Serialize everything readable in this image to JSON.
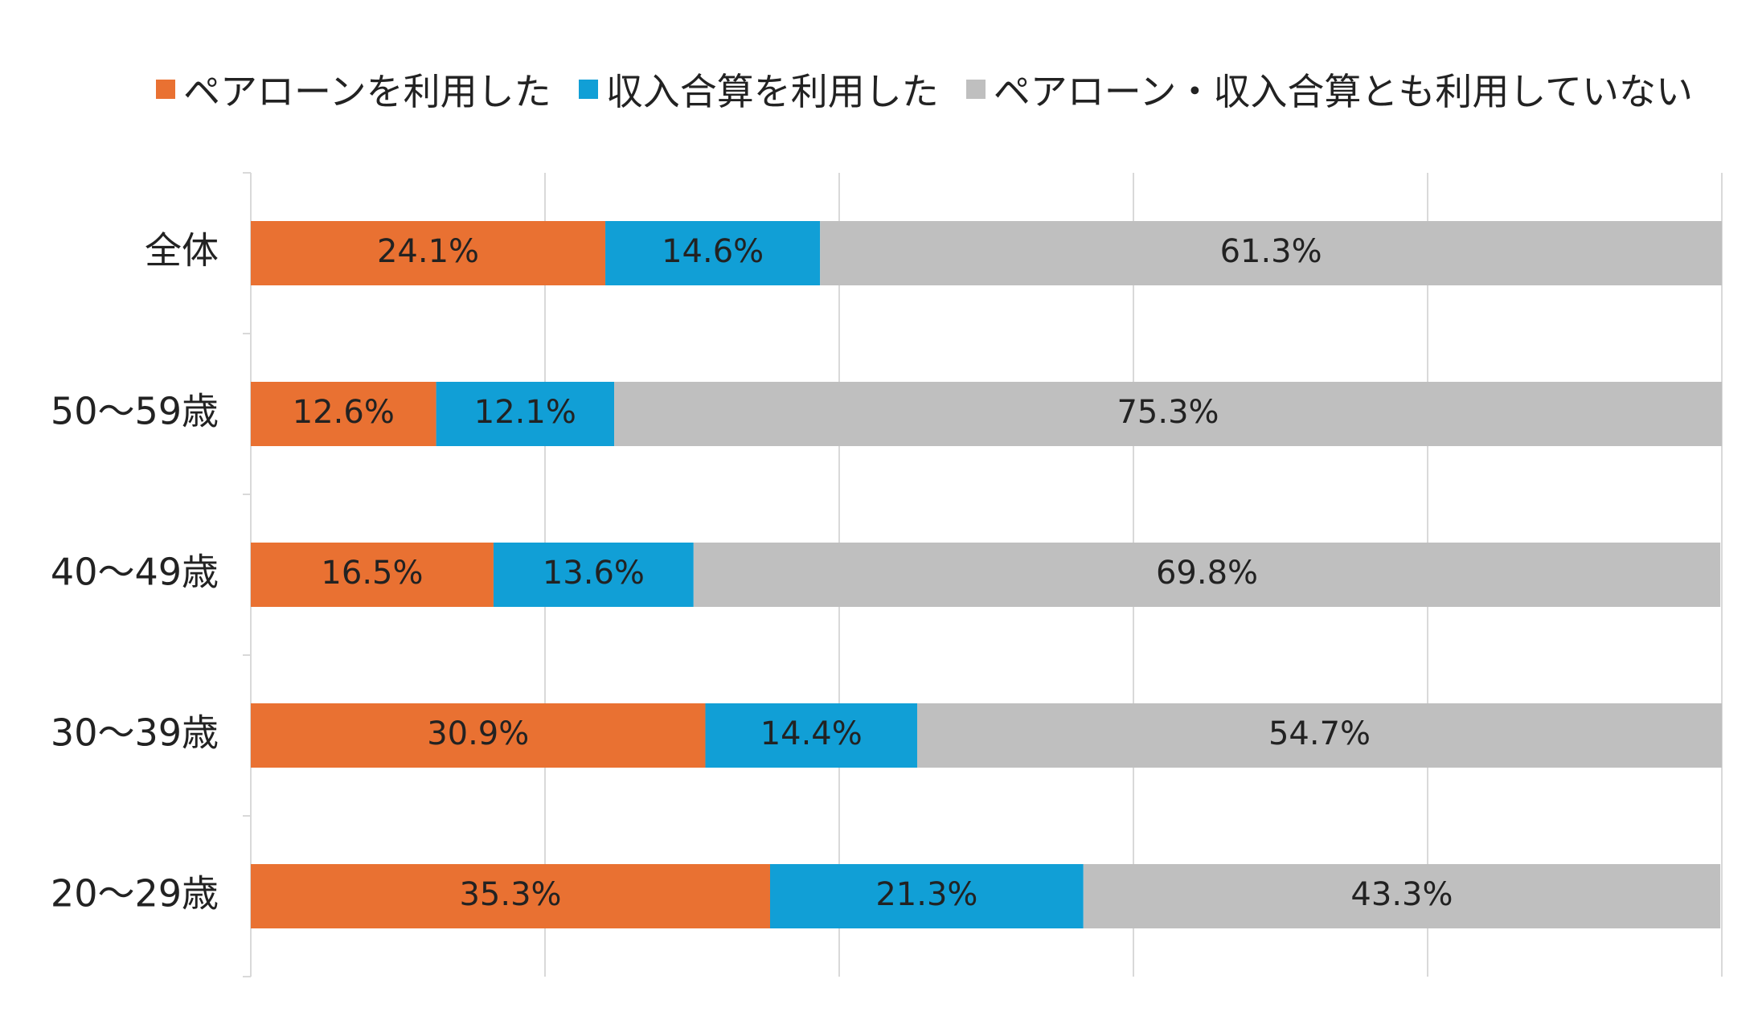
{
  "chart_data": {
    "type": "bar",
    "orientation": "horizontal",
    "stacked": "percent",
    "categories": [
      "全体",
      "50～59歳",
      "40～49歳",
      "30～39歳",
      "20～29歳"
    ],
    "series": [
      {
        "name": "ペアローンを利用した",
        "color": "#E97132",
        "values": [
          24.1,
          12.6,
          16.5,
          30.9,
          35.3
        ],
        "labels": [
          "24.1%",
          "12.6%",
          "16.5%",
          "30.9%",
          "35.3%"
        ]
      },
      {
        "name": "収入合算を利用した",
        "color": "#119FD6",
        "values": [
          14.6,
          12.1,
          13.6,
          14.4,
          21.3
        ],
        "labels": [
          "14.6%",
          "12.1%",
          "13.6%",
          "14.4%",
          "21.3%"
        ]
      },
      {
        "name": "ペアローン・収入合算とも利用していない",
        "color": "#BFBFBF",
        "values": [
          61.3,
          75.3,
          69.8,
          54.7,
          43.3
        ],
        "labels": [
          "61.3%",
          "75.3%",
          "69.8%",
          "54.7%",
          "43.3%"
        ]
      }
    ],
    "xlim": [
      0,
      100
    ],
    "grid": true,
    "legend_position": "top"
  }
}
